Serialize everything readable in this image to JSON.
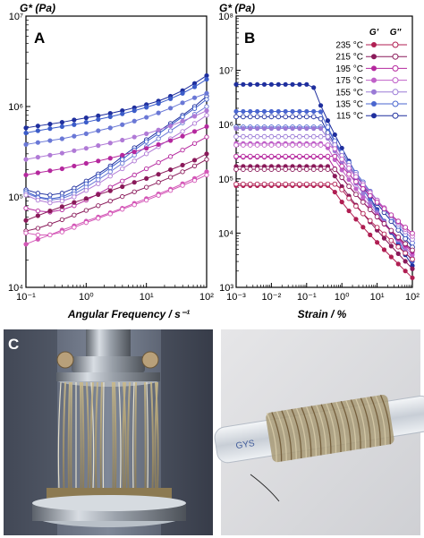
{
  "chart_data": [
    {
      "panel": "A",
      "type": "line",
      "ylabel": "G* (Pa)",
      "xlabel": "Angular Frequency / s⁻¹",
      "xscale": "log",
      "yscale": "log",
      "xlim": [
        0.1,
        100
      ],
      "ylim": [
        10000,
        10000000
      ],
      "x_ticks": [
        "10⁻¹",
        "10⁰",
        "10¹",
        "10²"
      ],
      "y_ticks": [
        "10⁴",
        "10⁵",
        "10⁶",
        "10⁷"
      ],
      "x": [
        0.1,
        0.158,
        0.251,
        0.398,
        0.631,
        1,
        1.585,
        2.512,
        3.981,
        6.31,
        10,
        15.85,
        25.12,
        39.81,
        63.1,
        100
      ],
      "series": [
        {
          "temperature": "115 °C",
          "modulus": "G'",
          "color": "#1f2f9e",
          "values": [
            580000,
            610000,
            640000,
            670000,
            710000,
            750000,
            790000,
            840000,
            900000,
            970000,
            1050000,
            1150000,
            1300000,
            1500000,
            1800000,
            2200000
          ]
        },
        {
          "temperature": "115 °C",
          "modulus": "G''",
          "color": "#1f2f9e",
          "values": [
            120000,
            110000,
            105000,
            110000,
            125000,
            150000,
            180000,
            220000,
            280000,
            350000,
            430000,
            530000,
            650000,
            800000,
            1000000,
            1300000
          ]
        },
        {
          "temperature": "135 °C",
          "modulus": "G'",
          "color": "#3b5cc9",
          "values": [
            510000,
            540000,
            570000,
            600000,
            630000,
            670000,
            720000,
            770000,
            830000,
            900000,
            980000,
            1080000,
            1220000,
            1400000,
            1650000,
            2000000
          ]
        },
        {
          "temperature": "135 °C",
          "modulus": "G''",
          "color": "#3b5cc9",
          "values": [
            115000,
            100000,
            95000,
            100000,
            115000,
            140000,
            170000,
            210000,
            260000,
            330000,
            410000,
            500000,
            620000,
            770000,
            950000,
            1200000
          ]
        },
        {
          "temperature": "155 °C",
          "modulus": "G'",
          "color": "#6a78d6",
          "values": [
            380000,
            400000,
            420000,
            440000,
            470000,
            500000,
            540000,
            580000,
            630000,
            690000,
            760000,
            850000,
            960000,
            1100000,
            1250000,
            1400000
          ]
        },
        {
          "temperature": "155 °C",
          "modulus": "G''",
          "color": "#6a78d6",
          "values": [
            110000,
            98000,
            92000,
            96000,
            108000,
            128000,
            155000,
            190000,
            235000,
            290000,
            360000,
            440000,
            540000,
            660000,
            820000,
            1000000
          ]
        },
        {
          "temperature": "175 °C",
          "modulus": "G'",
          "color": "#b07ad6",
          "values": [
            260000,
            275000,
            290000,
            305000,
            325000,
            345000,
            370000,
            395000,
            425000,
            460000,
            500000,
            550000,
            610000,
            690000,
            780000,
            900000
          ]
        },
        {
          "temperature": "175 °C",
          "modulus": "G''",
          "color": "#b07ad6",
          "values": [
            105000,
            92000,
            86000,
            90000,
            100000,
            118000,
            140000,
            170000,
            205000,
            250000,
            300000,
            360000,
            440000,
            530000,
            650000,
            800000
          ]
        },
        {
          "temperature": "195 °C",
          "modulus": "G'",
          "color": "#b5289e",
          "values": [
            175000,
            185000,
            195000,
            205000,
            220000,
            235000,
            250000,
            268000,
            290000,
            315000,
            345000,
            380000,
            420000,
            470000,
            530000,
            600000
          ]
        },
        {
          "temperature": "195 °C",
          "modulus": "G''",
          "color": "#b5289e",
          "values": [
            75000,
            70000,
            68000,
            72000,
            80000,
            92000,
            108000,
            128000,
            150000,
            175000,
            205000,
            240000,
            280000,
            330000,
            390000,
            460000
          ]
        },
        {
          "temperature": "215 °C",
          "modulus": "G'",
          "color": "#8a1a5a",
          "values": [
            55000,
            62000,
            70000,
            78000,
            87000,
            96000,
            106000,
            117000,
            130000,
            145000,
            160000,
            178000,
            200000,
            225000,
            255000,
            300000
          ]
        },
        {
          "temperature": "215 °C",
          "modulus": "G''",
          "color": "#8a1a5a",
          "values": [
            42000,
            45000,
            50000,
            56000,
            63000,
            71000,
            80000,
            90000,
            101000,
            114000,
            128000,
            145000,
            165000,
            190000,
            220000,
            260000
          ]
        },
        {
          "temperature": "235 °C",
          "modulus": "G'",
          "color": "#d457b7",
          "values": [
            30000,
            34000,
            38000,
            43000,
            48000,
            54000,
            60000,
            67000,
            75000,
            85000,
            96000,
            108000,
            122000,
            140000,
            160000,
            190000
          ]
        },
        {
          "temperature": "235 °C",
          "modulus": "G''",
          "color": "#d457b7",
          "values": [
            40000,
            38000,
            38000,
            41000,
            46000,
            52000,
            58000,
            65000,
            73000,
            82000,
            92000,
            104000,
            118000,
            134000,
            152000,
            175000
          ]
        }
      ]
    },
    {
      "panel": "B",
      "type": "line",
      "ylabel": "G* (Pa)",
      "xlabel": "Strain / %",
      "xscale": "log",
      "yscale": "log",
      "xlim": [
        0.001,
        100
      ],
      "ylim": [
        1000,
        100000000
      ],
      "x_ticks": [
        "10⁻³",
        "10⁻²",
        "10⁻¹",
        "10⁰",
        "10¹",
        "10²"
      ],
      "y_ticks": [
        "10³",
        "10⁴",
        "10⁵",
        "10⁶",
        "10⁷",
        "10⁸"
      ],
      "legend": {
        "placement": "top-right",
        "headers": [
          "G'",
          "G''"
        ],
        "entries": [
          "235 °C",
          "215 °C",
          "195 °C",
          "175 °C",
          "155 °C",
          "135 °C",
          "115 °C"
        ],
        "colors": [
          "#b01e52",
          "#8a1a5a",
          "#b5289e",
          "#c060c8",
          "#9a7ad6",
          "#4a66cf",
          "#1f2f9e"
        ]
      },
      "plateaus": [
        {
          "temperature": "115 °C",
          "color": "#1f2f9e",
          "g_prime": 5500000,
          "g_double_prime": 1400000,
          "yield_strain": 0.15,
          "final_g_prime": 2500
        },
        {
          "temperature": "135 °C",
          "color": "#4a66cf",
          "g_prime": 1750000,
          "g_double_prime": 900000,
          "yield_strain": 0.25,
          "final_g_prime": 3000
        },
        {
          "temperature": "155 °C",
          "color": "#9a7ad6",
          "g_prime": 850000,
          "g_double_prime": 600000,
          "yield_strain": 0.3,
          "final_g_prime": 3500
        },
        {
          "temperature": "175 °C",
          "color": "#c060c8",
          "g_prime": 450000,
          "g_double_prime": 420000,
          "yield_strain": 0.35,
          "final_g_prime": 4000
        },
        {
          "temperature": "195 °C",
          "color": "#b5289e",
          "g_prime": 250000,
          "g_double_prime": 260000,
          "yield_strain": 0.4,
          "final_g_prime": 4500
        },
        {
          "temperature": "215 °C",
          "color": "#8a1a5a",
          "g_prime": 170000,
          "g_double_prime": 150000,
          "yield_strain": 0.45,
          "final_g_prime": 2200
        },
        {
          "temperature": "235 °C",
          "color": "#b01e52",
          "g_prime": 75000,
          "g_double_prime": 80000,
          "yield_strain": 0.5,
          "final_g_prime": 1500
        }
      ]
    }
  ],
  "photos": {
    "left_letter": "C",
    "right_label": "GYS"
  }
}
